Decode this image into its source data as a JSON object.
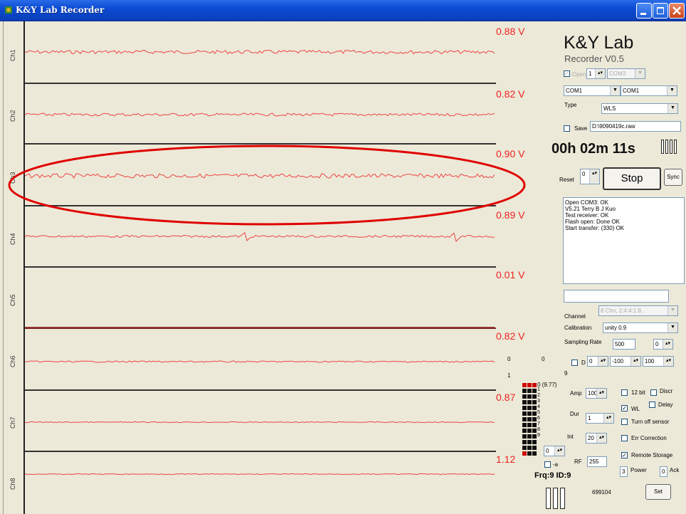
{
  "window": {
    "title": "K&Y Lab  Recorder"
  },
  "channels": {
    "labels": [
      "Ch1",
      "Ch2",
      "Ch3",
      "Ch4",
      "Ch5",
      "Ch6",
      "Ch7",
      "Ch8"
    ],
    "voltages": [
      "0.88 V",
      "0.82 V",
      "0.90 V",
      "0.89 V",
      "0.01 V",
      "0.82 V",
      "0.87",
      "1.12"
    ]
  },
  "brand": {
    "name": "K&Y Lab",
    "version": "Recorder V0.5"
  },
  "ports": {
    "open_label": "Open",
    "open_count": "1",
    "open_port": "COM3",
    "com_a": "COM1",
    "com_b": "COM1",
    "type_label": "Type",
    "type_value": "WLS",
    "save_label": "Save",
    "save_path": "D:\\9090419c.raw"
  },
  "timer": {
    "value": "00h 02m 11s"
  },
  "controls": {
    "reset_label": "Reset",
    "reset_value": "0",
    "stop_label": "Stop",
    "sync_label": "Sync"
  },
  "log_lines": [
    "Open COM3: OK",
    "V5.21   Terry B J Kuo",
    "Test receiver: OK",
    "Flash open: Done OK",
    "Start transfer: (330) OK"
  ],
  "config": {
    "channel_label": "Channel",
    "channel_value": "8 Chn, 2:4:4:1:8...",
    "calibration_label": "Calibration",
    "calibration_value": "unity 0.9",
    "sampling_label": "Sampling Rate",
    "sampling_value": "500",
    "sampling_extra": "0",
    "d_label": "D",
    "d_val1": "0",
    "d_val2": "-100",
    "d_val3": "100"
  },
  "numbers": {
    "tl": "0",
    "tr": "0",
    "bl": "1",
    "br": "9",
    "level_top": "0 (9.77)",
    "levels": [
      "1",
      "2",
      "3",
      "4",
      "5",
      "6",
      "7",
      "8",
      "9"
    ]
  },
  "radio": {
    "amp_label": "Amp",
    "amp_value": "100",
    "dur_label": "Dur",
    "dur_value": "1",
    "int_label": "Int",
    "int_value": "20",
    "small_value": "0",
    "a_label": "-a",
    "rf_label": "RF",
    "rf_value": "255",
    "power_value": "3",
    "power_label": "Power",
    "ack_value": "0",
    "ack_label": "Ack",
    "bit12_label": "12 bit",
    "discr_label": "Discr",
    "wl_label": "WL",
    "delay_label": "Delay",
    "turn_off_label": "Turn off sensor",
    "err_label": "Err Correction",
    "remote_label": "Remote Storage",
    "frq_id": "Frq:9   ID:9",
    "serial": "699104",
    "set_label": "Set"
  },
  "colors": {
    "accent_red": "#ee2222",
    "trace": "#ee4444",
    "annotation": "#e00000"
  }
}
